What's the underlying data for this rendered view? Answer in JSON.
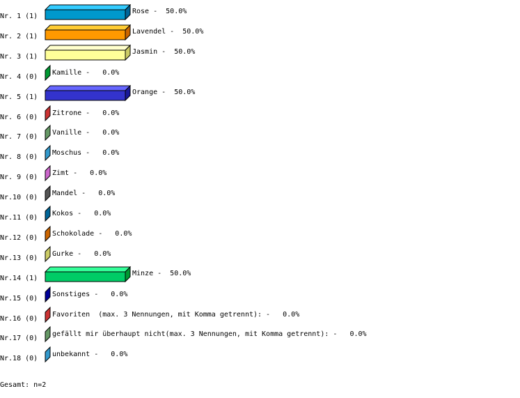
{
  "chart_data": {
    "type": "bar",
    "orientation": "horizontal",
    "style": "3d",
    "grid": false,
    "xlim": [
      0,
      50
    ],
    "categories": [
      "Nr. 1",
      "Nr. 2",
      "Nr. 3",
      "Nr. 4",
      "Nr. 5",
      "Nr. 6",
      "Nr. 7",
      "Nr. 8",
      "Nr. 9",
      "Nr.10",
      "Nr.11",
      "Nr.12",
      "Nr.13",
      "Nr.14",
      "Nr.15",
      "Nr.16",
      "Nr.17",
      "Nr.18"
    ],
    "counts": [
      1,
      1,
      1,
      0,
      1,
      0,
      0,
      0,
      0,
      0,
      0,
      0,
      0,
      1,
      0,
      0,
      0,
      0
    ],
    "row_labels": [
      "Nr. 1 (1)",
      "Nr. 2 (1)",
      "Nr. 3 (1)",
      "Nr. 4 (0)",
      "Nr. 5 (1)",
      "Nr. 6 (0)",
      "Nr. 7 (0)",
      "Nr. 8 (0)",
      "Nr. 9 (0)",
      "Nr.10 (0)",
      "Nr.11 (0)",
      "Nr.12 (0)",
      "Nr.13 (0)",
      "Nr.14 (1)",
      "Nr.15 (0)",
      "Nr.16 (0)",
      "Nr.17 (0)",
      "Nr.18 (0)"
    ],
    "values": [
      50.0,
      50.0,
      50.0,
      0.0,
      50.0,
      0.0,
      0.0,
      0.0,
      0.0,
      0.0,
      0.0,
      0.0,
      0.0,
      50.0,
      0.0,
      0.0,
      0.0,
      0.0
    ],
    "data_labels": [
      "Rose -  50.0%",
      "Lavendel -  50.0%",
      "Jasmin -  50.0%",
      "Kamille -   0.0%",
      "Orange -  50.0%",
      "Zitrone -   0.0%",
      "Vanille -   0.0%",
      "Moschus -   0.0%",
      "Zimt -   0.0%",
      "Mandel -   0.0%",
      "Kokos -   0.0%",
      "Schokolade -   0.0%",
      "Gurke -   0.0%",
      "Minze -  50.0%",
      "Sonstiges -   0.0%",
      "Favoriten  (max. 3 Nennungen, mit Komma getrennt): -   0.0%",
      "gefällt mir überhaupt nicht(max. 3 Nennungen, mit Komma getrennt): -   0.0%",
      "unbekannt -   0.0%"
    ],
    "colors": [
      {
        "front": "#0099cc",
        "top": "#33ccff",
        "side": "#006699"
      },
      {
        "front": "#ff9900",
        "top": "#ffcc33",
        "side": "#cc6600"
      },
      {
        "front": "#ffff99",
        "top": "#ffffcc",
        "side": "#cccc66"
      },
      {
        "front": "#009933",
        "top": "#33cc66",
        "side": "#009933"
      },
      {
        "front": "#3333cc",
        "top": "#6666ff",
        "side": "#1a1a99"
      },
      {
        "front": "#cc3333",
        "top": "#ff6666",
        "side": "#cc3333"
      },
      {
        "front": "#669966",
        "top": "#99cc99",
        "side": "#669966"
      },
      {
        "front": "#3399cc",
        "top": "#66ccff",
        "side": "#3399cc"
      },
      {
        "front": "#cc66cc",
        "top": "#ff99ff",
        "side": "#cc66cc"
      },
      {
        "front": "#555555",
        "top": "#888888",
        "side": "#555555"
      },
      {
        "front": "#006699",
        "top": "#3399cc",
        "side": "#006699"
      },
      {
        "front": "#cc6600",
        "top": "#ff9933",
        "side": "#cc6600"
      },
      {
        "front": "#cccc66",
        "top": "#ffff99",
        "side": "#cccc66"
      },
      {
        "front": "#00cc66",
        "top": "#33ff99",
        "side": "#009933"
      },
      {
        "front": "#000099",
        "top": "#3333cc",
        "side": "#000099"
      },
      {
        "front": "#cc3333",
        "top": "#ff6666",
        "side": "#cc3333"
      },
      {
        "front": "#669966",
        "top": "#99cc99",
        "side": "#669966"
      },
      {
        "front": "#3399cc",
        "top": "#66ccff",
        "side": "#3399cc"
      }
    ]
  },
  "footer": {
    "total": "Gesamt: n=2"
  }
}
